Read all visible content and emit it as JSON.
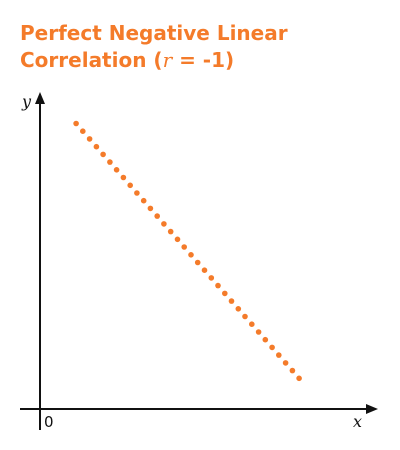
{
  "chart_data": {
    "type": "scatter",
    "title_line1": "Perfect Negative Linear",
    "title_line2_prefix": "Correlation (",
    "title_r_symbol": "r",
    "title_line2_suffix": " = -1)",
    "xlabel": "x",
    "ylabel": "y",
    "origin_label": "0",
    "point_color": "#f47b2a",
    "title_color": "#f47b2a",
    "axis_color": "#111111",
    "grid": false,
    "legend": "none",
    "xlim": [
      0,
      100
    ],
    "ylim": [
      0,
      100
    ],
    "points_count": 34,
    "x_start": 11,
    "x_end": 79,
    "y_start": 93,
    "y_end": 10
  }
}
